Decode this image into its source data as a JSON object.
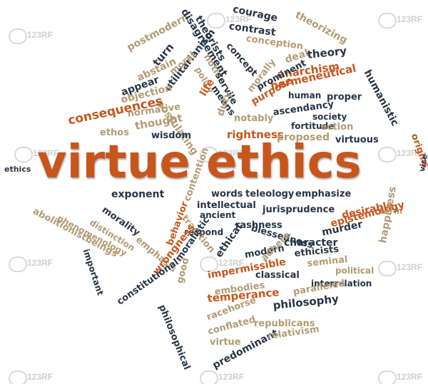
{
  "colors": {
    "orange": "#c8561c",
    "navy": "#263547",
    "tan": "#b39b74"
  },
  "hero": {
    "label": "virtue ethics"
  },
  "watermark": {
    "label": "123RF"
  },
  "words": [
    {
      "text": "courage",
      "c": "navy"
    },
    {
      "text": "theorizing",
      "c": "tan"
    },
    {
      "text": "postmodern",
      "c": "tan"
    },
    {
      "text": "disagreement",
      "c": "navy"
    },
    {
      "text": "contrast",
      "c": "navy"
    },
    {
      "text": "conception",
      "c": "tan"
    },
    {
      "text": "concept",
      "c": "navy"
    },
    {
      "text": "turn",
      "c": "navy"
    },
    {
      "text": "theorists",
      "c": "navy"
    },
    {
      "text": "deal",
      "c": "tan"
    },
    {
      "text": "theory",
      "c": "navy"
    },
    {
      "text": "utilitarianism",
      "c": "navy"
    },
    {
      "text": "moral",
      "c": "tan"
    },
    {
      "text": "notion",
      "c": "tan"
    },
    {
      "text": "morally",
      "c": "tan"
    },
    {
      "text": "anarchism",
      "c": "orange"
    },
    {
      "text": "hermeneutical",
      "c": "orange"
    },
    {
      "text": "abstain",
      "c": "tan"
    },
    {
      "text": "policy",
      "c": "tan"
    },
    {
      "text": "servile",
      "c": "navy"
    },
    {
      "text": "appear",
      "c": "navy"
    },
    {
      "text": "postulating",
      "c": "tan"
    },
    {
      "text": "prominent",
      "c": "navy"
    },
    {
      "text": "human",
      "c": "navy"
    },
    {
      "text": "proper",
      "c": "navy"
    },
    {
      "text": "humanistic",
      "c": "navy"
    },
    {
      "text": "life",
      "c": "orange"
    },
    {
      "text": "purpose",
      "c": "orange"
    },
    {
      "text": "means",
      "c": "navy"
    },
    {
      "text": "objection",
      "c": "tan"
    },
    {
      "text": "consequences",
      "c": "orange"
    },
    {
      "text": "ascendancy",
      "c": "navy"
    },
    {
      "text": "normative",
      "c": "tan"
    },
    {
      "text": "thought",
      "c": "tan"
    },
    {
      "text": "society",
      "c": "navy"
    },
    {
      "text": "duty",
      "c": "tan"
    },
    {
      "text": "notably",
      "c": "tan"
    },
    {
      "text": "fortitude",
      "c": "navy"
    },
    {
      "text": "action",
      "c": "tan"
    },
    {
      "text": "ethos",
      "c": "tan"
    },
    {
      "text": "wisdom",
      "c": "navy"
    },
    {
      "text": "rightness",
      "c": "orange"
    },
    {
      "text": "proposed",
      "c": "tan"
    },
    {
      "text": "virtuous",
      "c": "navy"
    },
    {
      "text": "origins",
      "c": "orange"
    },
    {
      "text": "ethics",
      "c": "navy"
    },
    {
      "text": "vice",
      "c": "navy"
    },
    {
      "text": "exponent",
      "c": "navy"
    },
    {
      "text": "words",
      "c": "navy"
    },
    {
      "text": "teleology",
      "c": "navy"
    },
    {
      "text": "emphasize",
      "c": "navy"
    },
    {
      "text": "intellectual",
      "c": "navy"
    },
    {
      "text": "ancient",
      "c": "navy"
    },
    {
      "text": "jurisprudence",
      "c": "navy"
    },
    {
      "text": "morality",
      "c": "navy"
    },
    {
      "text": "contention",
      "c": "tan"
    },
    {
      "text": "abolitionistbeings",
      "c": "tan"
    },
    {
      "text": "phenomenology",
      "c": "tan"
    },
    {
      "text": "distinction",
      "c": "tan"
    },
    {
      "text": "respond",
      "c": "navy"
    },
    {
      "text": "tradition",
      "c": "tan"
    },
    {
      "text": "rashness",
      "c": "navy"
    },
    {
      "text": "desirable",
      "c": "orange"
    },
    {
      "text": "term",
      "c": "tan"
    },
    {
      "text": "ethical",
      "c": "navy"
    },
    {
      "text": "blessedness",
      "c": "navy"
    },
    {
      "text": "modern",
      "c": "navy"
    },
    {
      "text": "character",
      "c": "navy"
    },
    {
      "text": "murder",
      "c": "navy"
    },
    {
      "text": "epistemology",
      "c": "orange"
    },
    {
      "text": "emphasis",
      "c": "tan"
    },
    {
      "text": "behavior",
      "c": "orange"
    },
    {
      "text": "adhere",
      "c": "tan"
    },
    {
      "text": "ethicists",
      "c": "navy"
    },
    {
      "text": "seminal",
      "c": "tan"
    },
    {
      "text": "political",
      "c": "tan"
    },
    {
      "text": "important",
      "c": "navy"
    },
    {
      "text": "wrongness",
      "c": "orange"
    },
    {
      "text": "moralistic",
      "c": "navy"
    },
    {
      "text": "impermissible",
      "c": "orange"
    },
    {
      "text": "classical",
      "c": "navy"
    },
    {
      "text": "embodies",
      "c": "tan"
    },
    {
      "text": "interrelation",
      "c": "navy"
    },
    {
      "text": "happiness",
      "c": "tan"
    },
    {
      "text": "constitutional",
      "c": "navy"
    },
    {
      "text": "good",
      "c": "tan"
    },
    {
      "text": "philosophical",
      "c": "navy"
    },
    {
      "text": "temperance",
      "c": "orange"
    },
    {
      "text": "paralleled",
      "c": "tan"
    },
    {
      "text": "racehorse",
      "c": "tan"
    },
    {
      "text": "conflated",
      "c": "tan"
    },
    {
      "text": "philosophy",
      "c": "navy"
    },
    {
      "text": "virtue",
      "c": "tan"
    },
    {
      "text": "republicans",
      "c": "tan"
    },
    {
      "text": "predominant",
      "c": "navy"
    },
    {
      "text": "relativism",
      "c": "tan"
    }
  ]
}
